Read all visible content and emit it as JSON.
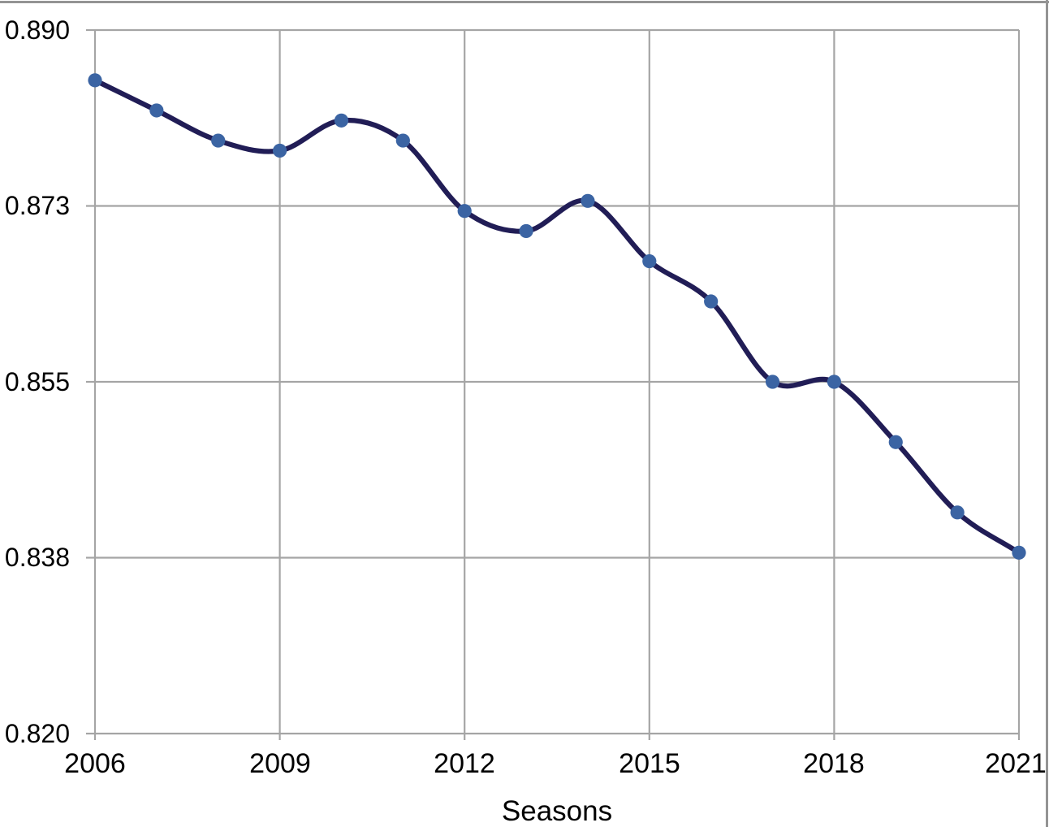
{
  "chart_data": {
    "type": "line",
    "title": "",
    "xlabel": "Seasons",
    "ylabel": "",
    "x": [
      2006,
      2007,
      2008,
      2009,
      2010,
      2011,
      2012,
      2013,
      2014,
      2015,
      2016,
      2017,
      2018,
      2019,
      2020,
      2021
    ],
    "series": [
      {
        "name": "",
        "values": [
          0.885,
          0.882,
          0.879,
          0.878,
          0.881,
          0.879,
          0.872,
          0.87,
          0.873,
          0.867,
          0.863,
          0.855,
          0.855,
          0.849,
          0.842,
          0.838
        ]
      }
    ],
    "x_tick_labels": [
      "2006",
      "2009",
      "2012",
      "2015",
      "2018",
      "2021"
    ],
    "y_tick_labels": [
      "0.890",
      "0.873",
      "0.855",
      "0.838",
      "0.820"
    ],
    "y_axis": {
      "min": 0.82,
      "max": 0.89
    },
    "x_axis": {
      "min": 2006,
      "max": 2021
    },
    "grid": true,
    "legend": false,
    "smooth": true,
    "marker": "circle",
    "colors": {
      "line": "#211d56",
      "marker": "#3b64a3",
      "grid": "#a5a5a5",
      "frame": "#949494",
      "text": "#000000"
    }
  }
}
